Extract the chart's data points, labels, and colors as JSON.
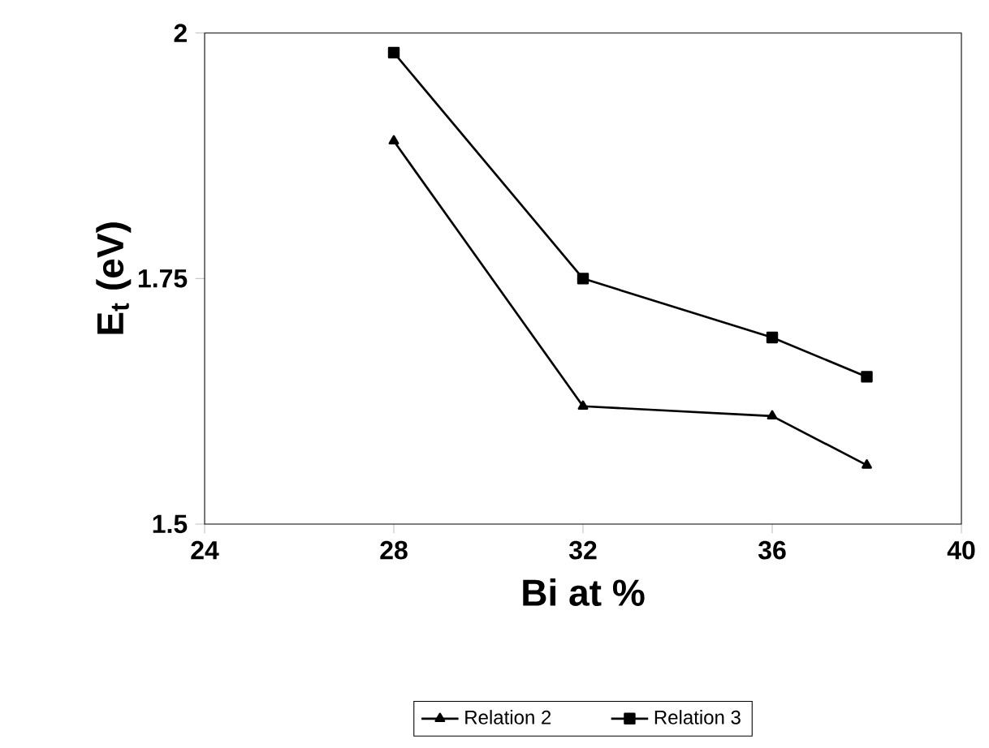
{
  "chart_data": {
    "type": "line",
    "xlabel": "Bi at %",
    "ylabel": "E$_{t}$ (eV)",
    "x": [
      28,
      32,
      36,
      38
    ],
    "series": [
      {
        "name": "Relation 2",
        "color": "#000000",
        "marker": "triangle",
        "values": [
          1.89,
          1.62,
          1.61,
          1.56
        ]
      },
      {
        "name": "Relation 3",
        "color": "#000000",
        "marker": "square",
        "values": [
          1.98,
          1.75,
          1.69,
          1.65
        ]
      }
    ],
    "xlim": [
      24,
      40
    ],
    "xticks": [
      24,
      28,
      32,
      36,
      40
    ],
    "ylim": [
      1.5,
      2
    ],
    "yticks": [
      1.5,
      1.75,
      2
    ],
    "grid": false,
    "legend": "bottom",
    "line_style": "solid"
  }
}
